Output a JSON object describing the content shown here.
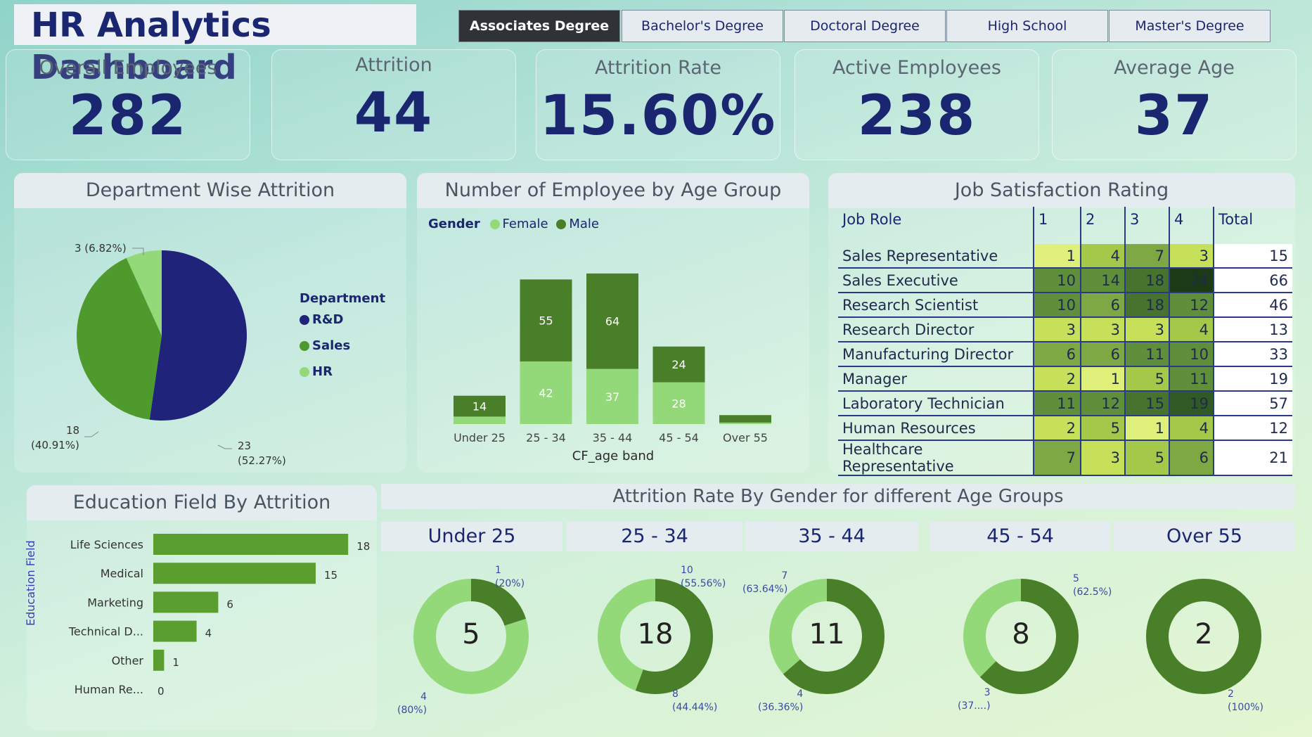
{
  "title": "HR Analytics Dashboard",
  "education_filters": [
    "Associates Degree",
    "Bachelor's Degree",
    "Doctoral Degree",
    "High School",
    "Master's Degree"
  ],
  "kpis": {
    "overall": {
      "label": "Overall Employees",
      "value": "282"
    },
    "attrition": {
      "label": "Attrition",
      "value": "44"
    },
    "rate": {
      "label": "Attrition Rate",
      "value": "15.60%"
    },
    "active": {
      "label": "Active Employees",
      "value": "238"
    },
    "age": {
      "label": "Average Age",
      "value": "37"
    }
  },
  "colors": {
    "navy": "#1f237a",
    "green": "#4e9a2c",
    "light": "#93d97a",
    "dark_green": "#4a7f2a",
    "bar_green": "#5a9e2f"
  },
  "dept": {
    "title": "Department Wise Attrition",
    "legend_title": "Department",
    "items": [
      {
        "name": "R&D",
        "value": 23,
        "label1": "23",
        "label2": "(52.27%)"
      },
      {
        "name": "Sales",
        "value": 18,
        "label1": "18",
        "label2": "(40.91%)"
      },
      {
        "name": "HR",
        "value": 3,
        "label1": "3 (6.82%)",
        "label2": ""
      }
    ]
  },
  "age_group": {
    "title": "Number of Employee by Age Group",
    "legend_label": "Gender",
    "female_label": "Female",
    "male_label": "Male",
    "xlabel": "CF_age band"
  },
  "job_sat": {
    "title": "Job Satisfaction Rating",
    "headers": [
      "Job Role",
      "1",
      "2",
      "3",
      "4",
      "Total"
    ],
    "rows": [
      {
        "role": "Sales Representative",
        "v": [
          "1",
          "4",
          "7",
          "3"
        ],
        "total": "15"
      },
      {
        "role": "Sales Executive",
        "v": [
          "10",
          "14",
          "18",
          "24"
        ],
        "total": "66"
      },
      {
        "role": "Research Scientist",
        "v": [
          "10",
          "6",
          "18",
          "12"
        ],
        "total": "46"
      },
      {
        "role": "Research Director",
        "v": [
          "3",
          "3",
          "3",
          "4"
        ],
        "total": "13"
      },
      {
        "role": "Manufacturing Director",
        "v": [
          "6",
          "6",
          "11",
          "10"
        ],
        "total": "33"
      },
      {
        "role": "Manager",
        "v": [
          "2",
          "1",
          "5",
          "11"
        ],
        "total": "19"
      },
      {
        "role": "Laboratory Technician",
        "v": [
          "11",
          "12",
          "15",
          "19"
        ],
        "total": "57"
      },
      {
        "role": "Human Resources",
        "v": [
          "2",
          "5",
          "1",
          "4"
        ],
        "total": "12"
      },
      {
        "role": "Healthcare Representative",
        "v": [
          "7",
          "3",
          "5",
          "6"
        ],
        "total": "21"
      }
    ]
  },
  "edu_field": {
    "title": "Education Field By Attrition",
    "axis_label": "Education Field"
  },
  "gender_rate": {
    "title": "Attrition Rate By Gender for different Age Groups",
    "groups": [
      {
        "name": "Under 25",
        "total": "5",
        "male": 1,
        "female": 4,
        "male_l1": "1",
        "male_l2": "(20%)",
        "female_l1": "4",
        "female_l2": "(80%)"
      },
      {
        "name": "25 - 34",
        "total": "18",
        "male": 10,
        "female": 8,
        "male_l1": "10",
        "male_l2": "(55.56%)",
        "female_l1": "8",
        "female_l2": "(44.44%)"
      },
      {
        "name": "35 - 44",
        "total": "11",
        "male": 7,
        "female": 4,
        "male_l1": "7",
        "male_l2": "(63.64%)",
        "female_l1": "4",
        "female_l2": "(36.36%)"
      },
      {
        "name": "45 - 54",
        "total": "8",
        "male": 5,
        "female": 3,
        "male_l1": "5",
        "male_l2": "(62.5%)",
        "female_l1": "3",
        "female_l2": "(37....)"
      },
      {
        "name": "Over 55",
        "total": "2",
        "male": 2,
        "female": 0,
        "male_l1": "2",
        "male_l2": "(100%)",
        "female_l1": "",
        "female_l2": ""
      }
    ]
  },
  "chart_data": [
    {
      "type": "pie",
      "title": "Department Wise Attrition",
      "categories": [
        "R&D",
        "Sales",
        "HR"
      ],
      "values": [
        23,
        18,
        3
      ],
      "legend": "right"
    },
    {
      "type": "bar",
      "title": "Number of Employee by Age Group",
      "xlabel": "CF_age band",
      "ylabel": "",
      "categories": [
        "Under 25",
        "25 - 34",
        "35 - 44",
        "45 - 54",
        "Over 55"
      ],
      "series": [
        {
          "name": "Female",
          "values": [
            5,
            42,
            37,
            28,
            1
          ]
        },
        {
          "name": "Male",
          "values": [
            14,
            55,
            64,
            24,
            5
          ]
        }
      ],
      "shown_labels": {
        "Female": [
          "",
          "42",
          "37",
          "28",
          ""
        ],
        "Male": [
          "14",
          "55",
          "64",
          "24",
          ""
        ]
      }
    },
    {
      "type": "bar",
      "title": "Education Field By Attrition",
      "ylabel": "Education Field",
      "categories": [
        "Life Sciences",
        "Medical",
        "Marketing",
        "Technical D...",
        "Other",
        "Human Re..."
      ],
      "values": [
        18,
        15,
        6,
        4,
        1,
        0
      ]
    }
  ]
}
